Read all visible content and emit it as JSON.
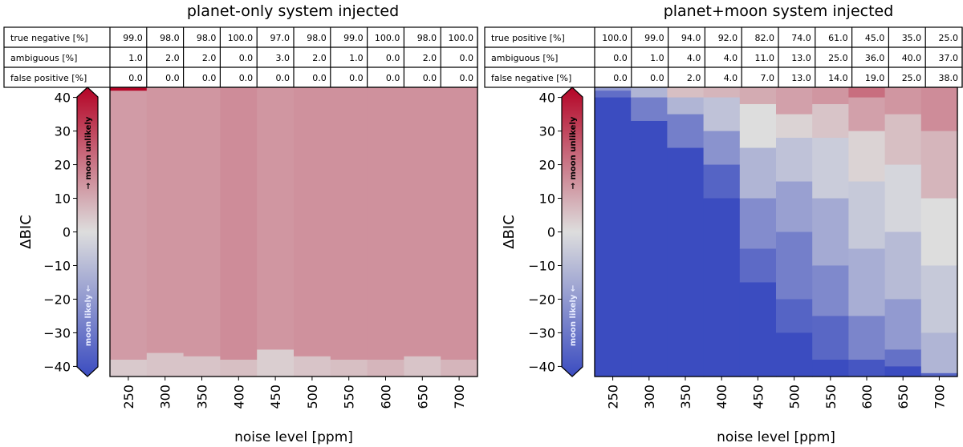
{
  "chart_data": [
    {
      "type": "heatmap",
      "title": "planet-only system injected",
      "xlabel": "noise level [ppm]",
      "ylabel": "ΔBIC",
      "categories": [
        "250",
        "300",
        "350",
        "400",
        "450",
        "500",
        "550",
        "600",
        "650",
        "700"
      ],
      "ylim": [
        -43,
        43
      ],
      "yticks": [
        "40",
        "30",
        "20",
        "10",
        "0",
        "−10",
        "−20",
        "−30",
        "−40"
      ],
      "yticks_values": [
        40,
        30,
        20,
        10,
        0,
        -10,
        -20,
        -30,
        -40
      ],
      "colorbar": {
        "range": [
          -43,
          43
        ],
        "colors": [
          "#3b4cc0",
          "#dddddd",
          "#b40426"
        ],
        "top_label": "→ moon unlikely",
        "bottom_label": "moon likely ←"
      },
      "table": {
        "rows": [
          {
            "label": "true negative [%]",
            "values": [
              "99.0",
              "98.0",
              "98.0",
              "100.0",
              "97.0",
              "98.0",
              "99.0",
              "100.0",
              "98.0",
              "100.0"
            ]
          },
          {
            "label": "ambiguous [%]",
            "values": [
              "1.0",
              "2.0",
              "2.0",
              "0.0",
              "3.0",
              "2.0",
              "1.0",
              "0.0",
              "2.0",
              "0.0"
            ]
          },
          {
            "label": "false positive [%]",
            "values": [
              "0.0",
              "0.0",
              "0.0",
              "0.0",
              "0.0",
              "0.0",
              "0.0",
              "0.0",
              "0.0",
              "0.0"
            ]
          }
        ]
      },
      "columns": [
        {
          "segments": [
            {
              "from": 42,
              "to": 43,
              "value": 43
            },
            {
              "from": -38,
              "to": 42,
              "value": 13
            },
            {
              "from": -43,
              "to": -38,
              "value": 4
            }
          ]
        },
        {
          "segments": [
            {
              "from": -36,
              "to": 43,
              "value": 14
            },
            {
              "from": -43,
              "to": -36,
              "value": 5
            }
          ]
        },
        {
          "segments": [
            {
              "from": -37,
              "to": 43,
              "value": 14
            },
            {
              "from": -43,
              "to": -37,
              "value": 5
            }
          ]
        },
        {
          "segments": [
            {
              "from": -38,
              "to": 43,
              "value": 16
            },
            {
              "from": -43,
              "to": -38,
              "value": 6
            }
          ]
        },
        {
          "segments": [
            {
              "from": -35,
              "to": 43,
              "value": 14
            },
            {
              "from": -43,
              "to": -35,
              "value": 3
            }
          ]
        },
        {
          "segments": [
            {
              "from": -37,
              "to": 43,
              "value": 15
            },
            {
              "from": -43,
              "to": -37,
              "value": 5
            }
          ]
        },
        {
          "segments": [
            {
              "from": -38,
              "to": 43,
              "value": 15
            },
            {
              "from": -43,
              "to": -38,
              "value": 6
            }
          ]
        },
        {
          "segments": [
            {
              "from": -38,
              "to": 43,
              "value": 15
            },
            {
              "from": -43,
              "to": -38,
              "value": 8
            }
          ]
        },
        {
          "segments": [
            {
              "from": -37,
              "to": 43,
              "value": 15
            },
            {
              "from": -43,
              "to": -37,
              "value": 5
            }
          ]
        },
        {
          "segments": [
            {
              "from": -38,
              "to": 43,
              "value": 15
            },
            {
              "from": -43,
              "to": -38,
              "value": 8
            }
          ]
        }
      ]
    },
    {
      "type": "heatmap",
      "title": "planet+moon system injected",
      "xlabel": "noise level [ppm]",
      "ylabel": "ΔBIC",
      "categories": [
        "250",
        "300",
        "350",
        "400",
        "450",
        "500",
        "550",
        "600",
        "650",
        "700"
      ],
      "ylim": [
        -43,
        43
      ],
      "yticks": [
        "40",
        "30",
        "20",
        "10",
        "0",
        "−10",
        "−20",
        "−30",
        "−40"
      ],
      "yticks_values": [
        40,
        30,
        20,
        10,
        0,
        -10,
        -20,
        -30,
        -40
      ],
      "colorbar": {
        "range": [
          -43,
          43
        ],
        "colors": [
          "#3b4cc0",
          "#dddddd",
          "#b40426"
        ],
        "top_label": "→ moon unlikely",
        "bottom_label": "moon likely ←"
      },
      "table": {
        "rows": [
          {
            "label": "true positive [%]",
            "values": [
              "100.0",
              "99.0",
              "94.0",
              "92.0",
              "82.0",
              "74.0",
              "61.0",
              "45.0",
              "35.0",
              "25.0"
            ]
          },
          {
            "label": "ambiguous [%]",
            "values": [
              "0.0",
              "1.0",
              "4.0",
              "4.0",
              "11.0",
              "13.0",
              "25.0",
              "36.0",
              "40.0",
              "37.0"
            ]
          },
          {
            "label": "false negative [%]",
            "values": [
              "0.0",
              "0.0",
              "2.0",
              "4.0",
              "7.0",
              "13.0",
              "14.0",
              "19.0",
              "25.0",
              "38.0"
            ]
          }
        ]
      },
      "columns": [
        {
          "segments": [
            {
              "from": 42,
              "to": 43,
              "value": -20
            },
            {
              "from": 40,
              "to": 42,
              "value": -33
            },
            {
              "from": -43,
              "to": 40,
              "value": -43
            }
          ]
        },
        {
          "segments": [
            {
              "from": 40,
              "to": 43,
              "value": -12
            },
            {
              "from": 33,
              "to": 40,
              "value": -28
            },
            {
              "from": -43,
              "to": 33,
              "value": -43
            }
          ]
        },
        {
          "segments": [
            {
              "from": 40,
              "to": 43,
              "value": 6
            },
            {
              "from": 35,
              "to": 40,
              "value": -12
            },
            {
              "from": 25,
              "to": 35,
              "value": -28
            },
            {
              "from": -43,
              "to": 25,
              "value": -43
            }
          ]
        },
        {
          "segments": [
            {
              "from": 40,
              "to": 43,
              "value": 8
            },
            {
              "from": 30,
              "to": 40,
              "value": -8
            },
            {
              "from": 20,
              "to": 30,
              "value": -22
            },
            {
              "from": 10,
              "to": 20,
              "value": -36
            },
            {
              "from": -43,
              "to": 10,
              "value": -43
            }
          ]
        },
        {
          "segments": [
            {
              "from": 38,
              "to": 43,
              "value": 10
            },
            {
              "from": 25,
              "to": 38,
              "value": 0
            },
            {
              "from": 10,
              "to": 25,
              "value": -12
            },
            {
              "from": -5,
              "to": 10,
              "value": -24
            },
            {
              "from": -15,
              "to": -5,
              "value": -34
            },
            {
              "from": -43,
              "to": -15,
              "value": -43
            }
          ]
        },
        {
          "segments": [
            {
              "from": 35,
              "to": 43,
              "value": 12
            },
            {
              "from": 28,
              "to": 35,
              "value": 2
            },
            {
              "from": 15,
              "to": 28,
              "value": -8
            },
            {
              "from": 0,
              "to": 15,
              "value": -18
            },
            {
              "from": -20,
              "to": 0,
              "value": -28
            },
            {
              "from": -30,
              "to": -20,
              "value": -36
            },
            {
              "from": -43,
              "to": -30,
              "value": -43
            }
          ]
        },
        {
          "segments": [
            {
              "from": 38,
              "to": 43,
              "value": 14
            },
            {
              "from": 28,
              "to": 38,
              "value": 5
            },
            {
              "from": 10,
              "to": 28,
              "value": -5
            },
            {
              "from": -10,
              "to": 10,
              "value": -15
            },
            {
              "from": -25,
              "to": -10,
              "value": -25
            },
            {
              "from": -38,
              "to": -25,
              "value": -35
            },
            {
              "from": -43,
              "to": -38,
              "value": -43
            }
          ]
        },
        {
          "segments": [
            {
              "from": 40,
              "to": 43,
              "value": 22
            },
            {
              "from": 30,
              "to": 40,
              "value": 12
            },
            {
              "from": 15,
              "to": 30,
              "value": 2
            },
            {
              "from": -5,
              "to": 15,
              "value": -6
            },
            {
              "from": -25,
              "to": -5,
              "value": -14
            },
            {
              "from": -38,
              "to": -25,
              "value": -26
            },
            {
              "from": -43,
              "to": -38,
              "value": -40
            }
          ]
        },
        {
          "segments": [
            {
              "from": 35,
              "to": 43,
              "value": 14
            },
            {
              "from": 20,
              "to": 35,
              "value": 6
            },
            {
              "from": 0,
              "to": 20,
              "value": -2
            },
            {
              "from": -20,
              "to": 0,
              "value": -10
            },
            {
              "from": -35,
              "to": -20,
              "value": -20
            },
            {
              "from": -40,
              "to": -35,
              "value": -32
            },
            {
              "from": -43,
              "to": -40,
              "value": -43
            }
          ]
        },
        {
          "segments": [
            {
              "from": 30,
              "to": 43,
              "value": 16
            },
            {
              "from": 10,
              "to": 30,
              "value": 8
            },
            {
              "from": -10,
              "to": 10,
              "value": 0
            },
            {
              "from": -30,
              "to": -10,
              "value": -6
            },
            {
              "from": -42,
              "to": -30,
              "value": -12
            },
            {
              "from": -43,
              "to": -42,
              "value": -36
            }
          ]
        }
      ]
    }
  ]
}
